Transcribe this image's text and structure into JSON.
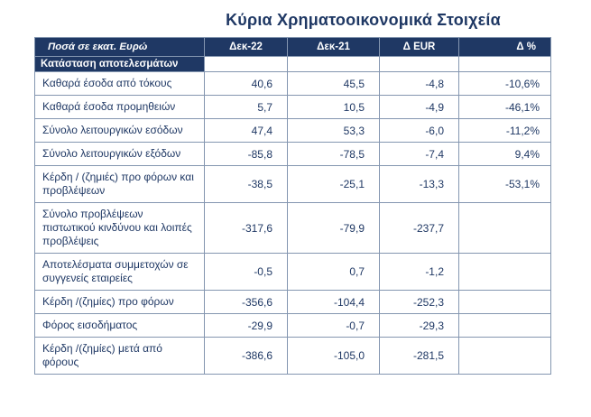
{
  "title": "Κύρια Χρηματοοικονομικά Στοιχεία",
  "table": {
    "columns": [
      "Ποσά σε εκατ. Ευρώ",
      "Δεκ-22",
      "Δεκ-21",
      "Δ EUR",
      "Δ %"
    ],
    "section": "Κατάσταση  αποτελεσμάτων",
    "rows": [
      {
        "label": "Καθαρά  έσοδα από τόκους",
        "values": [
          "40,6",
          "45,5",
          "-4,8",
          "-10,6%"
        ]
      },
      {
        "label": "Καθαρά  έσοδα προμηθειών",
        "values": [
          "5,7",
          "10,5",
          "-4,9",
          "-46,1%"
        ]
      },
      {
        "label": "Σύνολο λειτουργικών εσόδων",
        "values": [
          "47,4",
          "53,3",
          "-6,0",
          "-11,2%"
        ]
      },
      {
        "label": "Σύνολο λειτουργικών εξόδων",
        "values": [
          "-85,8",
          "-78,5",
          "-7,4",
          "9,4%"
        ]
      },
      {
        "label": "Κέρδη / (ζημιές) προ φόρων και προβλέψεων",
        "values": [
          "-38,5",
          "-25,1",
          "-13,3",
          "-53,1%"
        ]
      },
      {
        "label": "Σύνολο προβλέψεων πιστωτικού κινδύνου και λοιπές προβλέψεις",
        "values": [
          "-317,6",
          "-79,9",
          "-237,7",
          ""
        ]
      },
      {
        "label": "Αποτελέσματα συμμετοχών σε συγγενείς εταιρείες",
        "values": [
          "-0,5",
          "0,7",
          "-1,2",
          ""
        ]
      },
      {
        "label": "Κέρδη /(ζημίες) προ φόρων",
        "values": [
          "-356,6",
          "-104,4",
          "-252,3",
          ""
        ]
      },
      {
        "label": "Φόρος εισοδήματος",
        "values": [
          "-29,9",
          "-0,7",
          "-29,3",
          ""
        ]
      },
      {
        "label": "Κέρδη /(ζημίες) μετά από φόρους",
        "values": [
          "-386,6",
          "-105,0",
          "-281,5",
          ""
        ]
      }
    ]
  },
  "colors": {
    "header_bg": "#1F3864",
    "text": "#1F3864",
    "border": "#8496B0"
  }
}
